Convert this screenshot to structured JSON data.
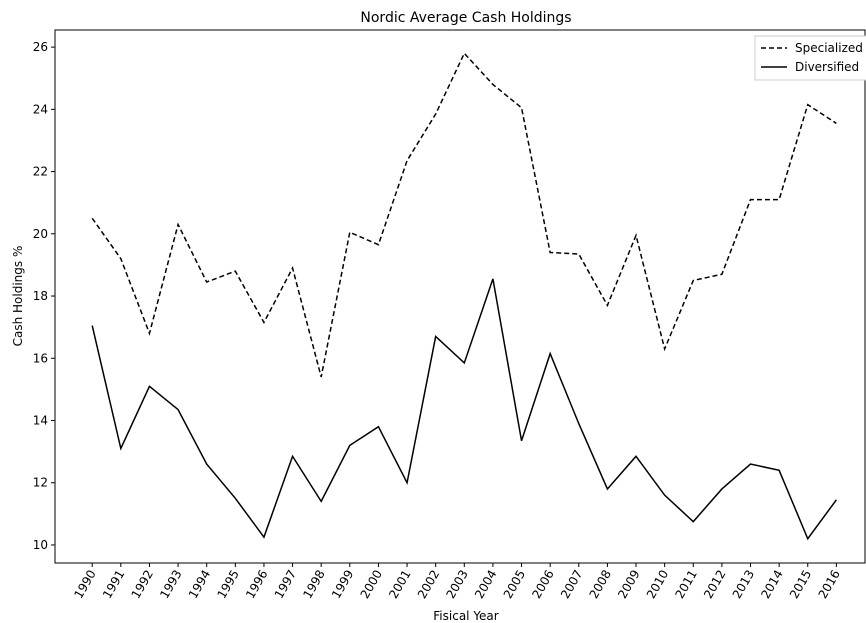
{
  "chart_data": {
    "type": "line",
    "title": "Nordic Average Cash Holdings",
    "x_label": "Fisical Year",
    "y_label": "Cash Holdings %",
    "x": [
      1990,
      1991,
      1992,
      1993,
      1994,
      1995,
      1996,
      1997,
      1998,
      1999,
      2000,
      2001,
      2002,
      2003,
      2004,
      2005,
      2006,
      2007,
      2008,
      2009,
      2010,
      2011,
      2012,
      2013,
      2014,
      2015,
      2016
    ],
    "series": [
      {
        "name": "Specialized",
        "color": "#000000",
        "linestyle": "dashed",
        "values": [
          20.5,
          19.2,
          16.8,
          20.3,
          18.45,
          18.8,
          17.15,
          18.9,
          15.4,
          20.05,
          19.65,
          22.35,
          23.85,
          25.8,
          24.8,
          24.05,
          19.4,
          19.35,
          17.7,
          19.95,
          16.3,
          18.5,
          18.7,
          21.1,
          21.1,
          24.15,
          23.55
        ]
      },
      {
        "name": "Diversified",
        "color": "#000000",
        "linestyle": "solid",
        "values": [
          17.05,
          13.1,
          15.1,
          14.35,
          12.6,
          11.5,
          10.25,
          12.85,
          11.4,
          13.2,
          13.8,
          12.0,
          16.7,
          15.85,
          18.55,
          13.35,
          16.15,
          13.9,
          11.8,
          12.85,
          11.6,
          10.75,
          11.8,
          12.6,
          12.4,
          10.2,
          11.45
        ]
      }
    ],
    "xlim": [
      1988.7,
      2017
    ],
    "xticks": [
      1990,
      1991,
      1992,
      1993,
      1994,
      1995,
      1996,
      1997,
      1998,
      1999,
      2000,
      2001,
      2002,
      2003,
      2004,
      2005,
      2006,
      2007,
      2008,
      2009,
      2010,
      2011,
      2012,
      2013,
      2014,
      2015,
      2016
    ],
    "ylim": [
      9.42,
      26.55
    ],
    "yticks": [
      10,
      12,
      14,
      16,
      18,
      20,
      22,
      24,
      26
    ],
    "legend": "upper right"
  }
}
